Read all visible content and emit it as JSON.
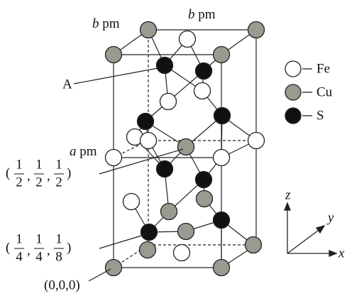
{
  "labels": {
    "b_left": {
      "var": "b",
      "unit": "pm"
    },
    "b_top": {
      "var": "b",
      "unit": "pm"
    },
    "atom_a": "A",
    "a_axis": {
      "var": "a",
      "unit": "pm"
    }
  },
  "coordinates": [
    {
      "open": "(",
      "sep": ",",
      "close": ")",
      "fractions": [
        {
          "num": "1",
          "den": "2"
        },
        {
          "num": "1",
          "den": "2"
        },
        {
          "num": "1",
          "den": "2"
        }
      ]
    },
    {
      "open": "(",
      "sep": ",",
      "close": ")",
      "fractions": [
        {
          "num": "1",
          "den": "4"
        },
        {
          "num": "1",
          "den": "4"
        },
        {
          "num": "1",
          "den": "8"
        }
      ]
    }
  ],
  "origin": "(0,0,0)",
  "legend": [
    {
      "symbol": "Fe"
    },
    {
      "symbol": "Cu"
    },
    {
      "symbol": "S"
    }
  ],
  "axes": {
    "z": "z",
    "y": "y",
    "x": "x"
  }
}
